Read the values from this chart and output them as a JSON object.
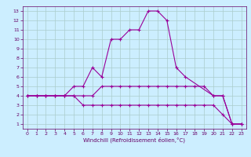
{
  "xlabel": "Windchill (Refroidissement éolien,°C)",
  "xlim": [
    -0.5,
    23.5
  ],
  "ylim": [
    0.5,
    13.5
  ],
  "xticks": [
    0,
    1,
    2,
    3,
    4,
    5,
    6,
    7,
    8,
    9,
    10,
    11,
    12,
    13,
    14,
    15,
    16,
    17,
    18,
    19,
    20,
    21,
    22,
    23
  ],
  "yticks": [
    1,
    2,
    3,
    4,
    5,
    6,
    7,
    8,
    9,
    10,
    11,
    12,
    13
  ],
  "bg_color": "#cceeff",
  "line_color": "#990099",
  "grid_color": "#aacccc",
  "line1_x": [
    0,
    1,
    2,
    3,
    4,
    5,
    6,
    7,
    8,
    9,
    10,
    11,
    12,
    13,
    14,
    15,
    16,
    17,
    20,
    21,
    22,
    23
  ],
  "line1_y": [
    4,
    4,
    4,
    4,
    4,
    5,
    5,
    7,
    6,
    10,
    10,
    11,
    11,
    13,
    13,
    12,
    7,
    6,
    4,
    4,
    1,
    1
  ],
  "line2_x": [
    0,
    1,
    2,
    3,
    4,
    5,
    6,
    7,
    8,
    9,
    10,
    11,
    12,
    13,
    14,
    15,
    16,
    17,
    18,
    19,
    20,
    21,
    22,
    23
  ],
  "line2_y": [
    4,
    4,
    4,
    4,
    4,
    4,
    4,
    4,
    5,
    5,
    5,
    5,
    5,
    5,
    5,
    5,
    5,
    5,
    5,
    5,
    4,
    4,
    1,
    1
  ],
  "line3_x": [
    0,
    1,
    2,
    3,
    4,
    5,
    6,
    7,
    8,
    9,
    10,
    11,
    12,
    13,
    14,
    15,
    16,
    17,
    18,
    19,
    20,
    21,
    22,
    23
  ],
  "line3_y": [
    4,
    4,
    4,
    4,
    4,
    4,
    3,
    3,
    3,
    3,
    3,
    3,
    3,
    3,
    3,
    3,
    3,
    3,
    3,
    3,
    3,
    2,
    1,
    1
  ],
  "tick_color": "#660066",
  "spine_color": "#660066",
  "tick_fontsize": 4.5,
  "xlabel_fontsize": 5.0
}
